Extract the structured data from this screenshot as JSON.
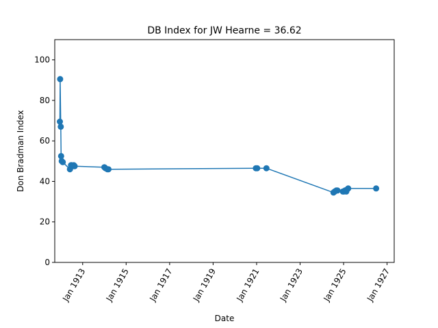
{
  "chart_data": {
    "type": "line",
    "title": "DB Index for JW Hearne = 36.62",
    "xlabel": "Date",
    "ylabel": "Don Bradman Index",
    "ylim": [
      0,
      110
    ],
    "xlim": [
      "1911-09-20",
      "1927-05-01"
    ],
    "x_ticks": [
      "Jan 1913",
      "Jan 1915",
      "Jan 1917",
      "Jan 1919",
      "Jan 1921",
      "Jan 1923",
      "Jan 1925",
      "Jan 1927"
    ],
    "y_ticks": [
      0,
      20,
      40,
      60,
      80,
      100
    ],
    "grid": false,
    "color": "#1f77b4",
    "series": [
      {
        "x": [
          "1911-12-15",
          "1911-12-20",
          "1911-12-30",
          "1912-01-05",
          "1912-01-15",
          "1912-02-01",
          "1912-06-01",
          "1912-06-20",
          "1912-07-01",
          "1912-07-20",
          "1912-08-05",
          "1912-08-20",
          "1914-01-01",
          "1914-01-20",
          "1914-02-20",
          "1914-03-10",
          "1920-12-20",
          "1921-01-10",
          "1921-06-15",
          "1924-07-15",
          "1924-08-05",
          "1924-09-01",
          "1924-09-20",
          "1924-12-20",
          "1925-01-05",
          "1925-01-25",
          "1925-02-15",
          "1925-03-01",
          "1925-03-20",
          "1926-07-01"
        ],
        "y": [
          69.5,
          90.5,
          67.0,
          52.5,
          50.0,
          49.5,
          46.0,
          48.0,
          48.0,
          47.5,
          48.0,
          47.5,
          47.0,
          46.5,
          46.0,
          46.0,
          46.5,
          46.5,
          46.5,
          34.5,
          35.0,
          35.5,
          35.5,
          35.0,
          35.0,
          35.5,
          35.0,
          36.0,
          36.5,
          36.5
        ]
      }
    ]
  }
}
